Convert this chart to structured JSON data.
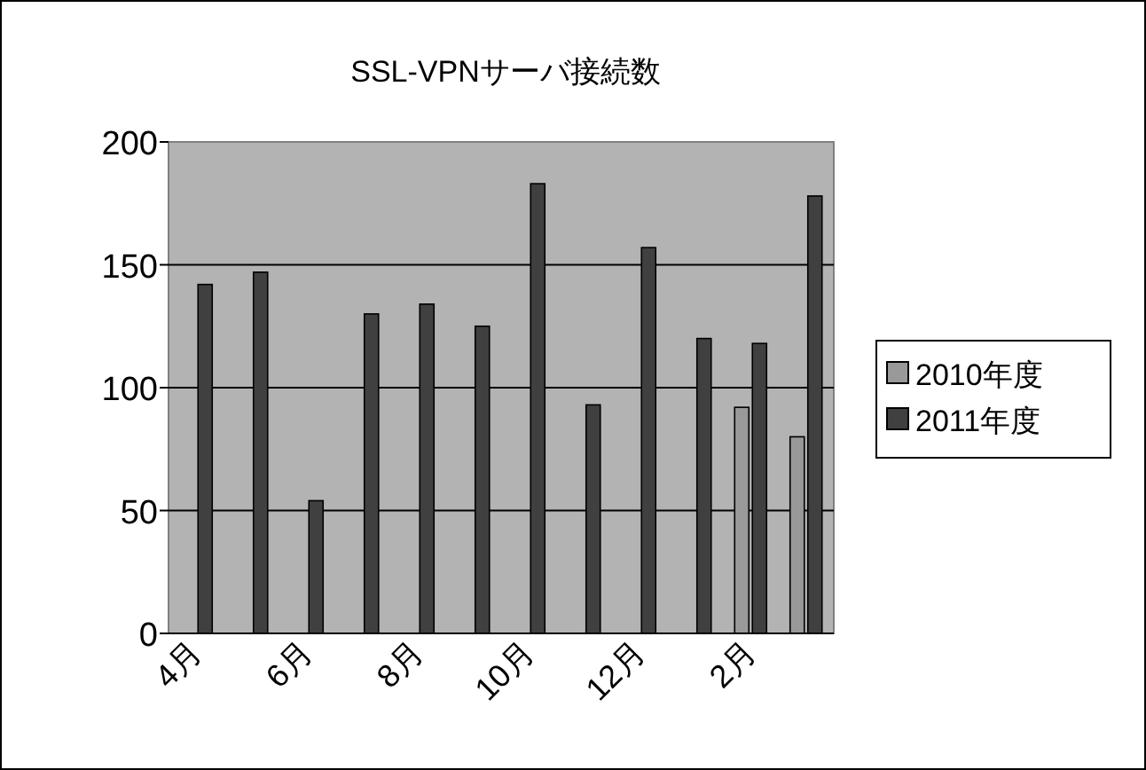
{
  "chart_data": {
    "type": "bar",
    "title": "SSL-VPNサーバ接続数",
    "categories": [
      "4月",
      null,
      "6月",
      null,
      "8月",
      null,
      "10月",
      null,
      "12月",
      null,
      "2月",
      null
    ],
    "series": [
      {
        "name": "2010年度",
        "color": "#999999",
        "values": [
          null,
          null,
          null,
          null,
          null,
          null,
          null,
          null,
          null,
          null,
          92,
          80
        ]
      },
      {
        "name": "2011年度",
        "color": "#404040",
        "values": [
          142,
          147,
          54,
          130,
          134,
          125,
          183,
          93,
          157,
          120,
          118,
          178
        ]
      }
    ],
    "ylim": [
      0,
      200
    ],
    "yticks": [
      0,
      50,
      100,
      150,
      200
    ],
    "grid": "y",
    "legend": "right"
  }
}
